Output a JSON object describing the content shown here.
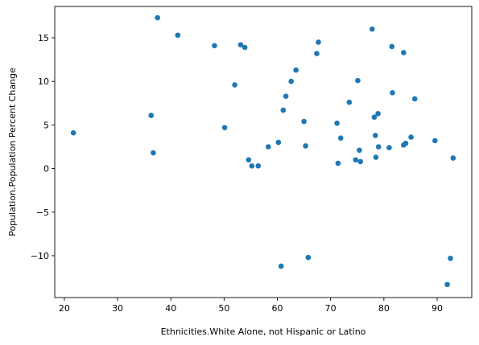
{
  "chart_data": {
    "type": "scatter",
    "xlabel": "Ethnicities.White Alone, not Hispanic or Latino",
    "ylabel": "Population.Population Percent Change",
    "xlim": [
      18.2,
      96.5
    ],
    "ylim": [
      -14.8,
      18.6
    ],
    "xticks": [
      20,
      30,
      40,
      50,
      60,
      70,
      80,
      90
    ],
    "yticks": [
      -10,
      -5,
      0,
      5,
      10,
      15
    ],
    "marker_color": "#1f77b4",
    "grid": false,
    "points": [
      {
        "x": 21.7,
        "y": 4.1
      },
      {
        "x": 36.3,
        "y": 6.1
      },
      {
        "x": 36.7,
        "y": 1.8
      },
      {
        "x": 37.5,
        "y": 17.3
      },
      {
        "x": 41.3,
        "y": 15.3
      },
      {
        "x": 48.2,
        "y": 14.1
      },
      {
        "x": 50.1,
        "y": 4.7
      },
      {
        "x": 52.0,
        "y": 9.6
      },
      {
        "x": 53.1,
        "y": 14.2
      },
      {
        "x": 53.9,
        "y": 13.9
      },
      {
        "x": 54.6,
        "y": 1.0
      },
      {
        "x": 55.2,
        "y": 0.3
      },
      {
        "x": 56.4,
        "y": 0.3
      },
      {
        "x": 58.3,
        "y": 2.5
      },
      {
        "x": 60.2,
        "y": 3.0
      },
      {
        "x": 60.7,
        "y": -11.2
      },
      {
        "x": 61.1,
        "y": 6.7
      },
      {
        "x": 61.6,
        "y": 8.3
      },
      {
        "x": 62.6,
        "y": 10.0
      },
      {
        "x": 63.5,
        "y": 11.3
      },
      {
        "x": 65.0,
        "y": 5.4
      },
      {
        "x": 65.3,
        "y": 2.6
      },
      {
        "x": 65.8,
        "y": -10.2
      },
      {
        "x": 67.4,
        "y": 13.2
      },
      {
        "x": 67.7,
        "y": 14.5
      },
      {
        "x": 71.2,
        "y": 5.2
      },
      {
        "x": 71.4,
        "y": 0.6
      },
      {
        "x": 71.9,
        "y": 3.5
      },
      {
        "x": 73.5,
        "y": 7.6
      },
      {
        "x": 74.7,
        "y": 1.0
      },
      {
        "x": 75.1,
        "y": 10.1
      },
      {
        "x": 75.4,
        "y": 2.1
      },
      {
        "x": 75.6,
        "y": 0.8
      },
      {
        "x": 77.8,
        "y": 16.0
      },
      {
        "x": 78.2,
        "y": 5.9
      },
      {
        "x": 78.4,
        "y": 3.8
      },
      {
        "x": 78.5,
        "y": 1.3
      },
      {
        "x": 78.9,
        "y": 6.3
      },
      {
        "x": 79.0,
        "y": 2.5
      },
      {
        "x": 81.0,
        "y": 2.4
      },
      {
        "x": 81.5,
        "y": 14.0
      },
      {
        "x": 81.6,
        "y": 8.7
      },
      {
        "x": 83.7,
        "y": 13.3
      },
      {
        "x": 83.7,
        "y": 2.7
      },
      {
        "x": 84.1,
        "y": 2.9
      },
      {
        "x": 85.1,
        "y": 3.6
      },
      {
        "x": 85.8,
        "y": 8.0
      },
      {
        "x": 89.6,
        "y": 3.2
      },
      {
        "x": 91.9,
        "y": -13.3
      },
      {
        "x": 92.5,
        "y": -10.3
      },
      {
        "x": 93.0,
        "y": 1.2
      }
    ]
  }
}
